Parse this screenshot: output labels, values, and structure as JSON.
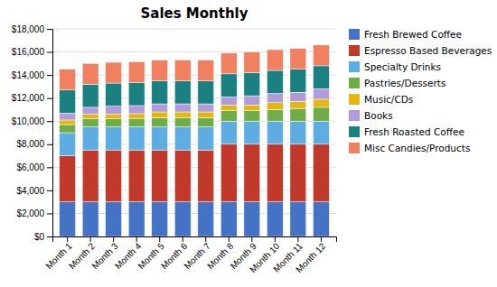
{
  "chart_data": {
    "type": "bar",
    "stacked": true,
    "title": "Sales Monthly",
    "categories": [
      "Month 1",
      "Month 2",
      "Month 3",
      "Month 4",
      "Month 5",
      "Month 6",
      "Month 7",
      "Month 8",
      "Month 9",
      "Month 10",
      "Month 11",
      "Month 12"
    ],
    "series": [
      {
        "name": "Fresh Brewed Coffee",
        "color": "#4472C4",
        "values": [
          3000,
          3000,
          3000,
          3000,
          3000,
          3000,
          3000,
          3000,
          3000,
          3000,
          3000,
          3000
        ]
      },
      {
        "name": "Espresso Based Beverages",
        "color": "#C0392B",
        "values": [
          4000,
          4500,
          4500,
          4500,
          4500,
          4500,
          4500,
          5000,
          5000,
          5000,
          5000,
          5000
        ]
      },
      {
        "name": "Specialty Drinks",
        "color": "#5DADE2",
        "values": [
          2000,
          2000,
          2000,
          2000,
          2000,
          2000,
          2000,
          2000,
          2000,
          2000,
          2000,
          2000
        ]
      },
      {
        "name": "Pastries/Desserts",
        "color": "#70AD47",
        "values": [
          700,
          700,
          700,
          700,
          800,
          800,
          800,
          900,
          900,
          1000,
          1100,
          1200
        ]
      },
      {
        "name": "Music/CDs",
        "color": "#E2B714",
        "values": [
          400,
          400,
          400,
          450,
          500,
          500,
          500,
          500,
          500,
          600,
          600,
          700
        ]
      },
      {
        "name": "Books",
        "color": "#B19CD9",
        "values": [
          600,
          600,
          700,
          700,
          700,
          700,
          700,
          700,
          800,
          800,
          800,
          900
        ]
      },
      {
        "name": "Fresh Roasted Coffee",
        "color": "#1A8080",
        "values": [
          2000,
          2000,
          2000,
          2000,
          2000,
          2000,
          2000,
          2000,
          2000,
          2000,
          2000,
          2000
        ]
      },
      {
        "name": "Misc Candies/Products",
        "color": "#F08060",
        "values": [
          1800,
          1800,
          1800,
          1800,
          1800,
          1800,
          1800,
          1800,
          1800,
          1800,
          1800,
          1800
        ]
      }
    ],
    "ylim": [
      0,
      18000
    ],
    "yticks": [
      {
        "value": 0,
        "label": "$0"
      },
      {
        "value": 2000,
        "label": "$2,000"
      },
      {
        "value": 4000,
        "label": "$4,000"
      },
      {
        "value": 6000,
        "label": "$6,000"
      },
      {
        "value": 8000,
        "label": "$8,000"
      },
      {
        "value": 10000,
        "label": "$10,000"
      },
      {
        "value": 12000,
        "label": "$12,000"
      },
      {
        "value": 14000,
        "label": "$14,000"
      },
      {
        "value": 16000,
        "label": "$16,000"
      },
      {
        "value": 18000,
        "label": "$18,000"
      }
    ],
    "grid": true,
    "legend": "right"
  }
}
